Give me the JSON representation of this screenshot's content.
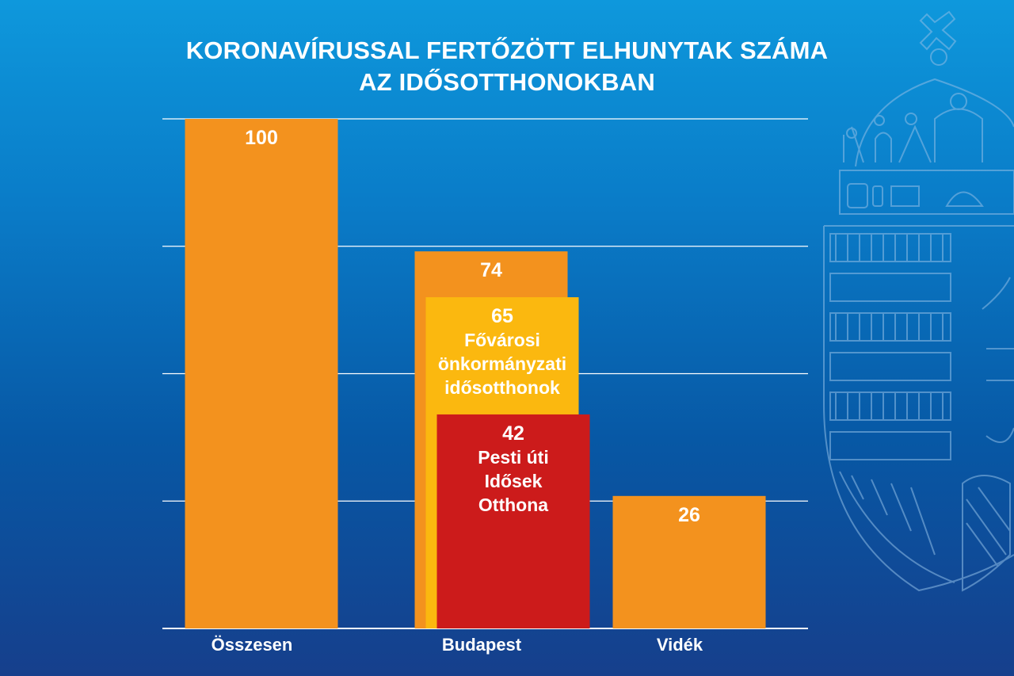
{
  "chart_data": {
    "type": "bar",
    "title_lines": [
      "KORONAVÍRUSSAL FERTŐZÖTT ELHUNYTAK SZÁMA",
      "AZ IDŐSOTTHONOKBAN"
    ],
    "categories": [
      "Összesen",
      "Budapest",
      "Vidék"
    ],
    "ylim": [
      0,
      100
    ],
    "grid": true,
    "bars": [
      {
        "category_index": 0,
        "value": 100,
        "label": [
          "100"
        ],
        "color": "#f3921e",
        "text_color": "#ffffff"
      },
      {
        "category_index": 1,
        "value": 74,
        "label": [
          "74"
        ],
        "color": "#f3921e",
        "text_color": "#ffffff"
      },
      {
        "category_index": 1,
        "value": 65,
        "label": [
          "65",
          "Fővárosi",
          "önkormányzati",
          "idősotthonok"
        ],
        "color": "#fbb80f",
        "text_color": "#ffffff"
      },
      {
        "category_index": 1,
        "value": 42,
        "label": [
          "42",
          "Pesti úti",
          "Idősek",
          "Otthona"
        ],
        "color": "#cc1b1b",
        "text_color": "#ffffff"
      },
      {
        "category_index": 2,
        "value": 26,
        "label": [
          "26"
        ],
        "color": "#f3921e",
        "text_color": "#ffffff"
      }
    ]
  },
  "colors": {
    "grid": "#ffffff",
    "text": "#ffffff",
    "emblem_line": "#8fbde6"
  },
  "decoration": {
    "emblem_icon": "hungarian-coat-of-arms-watermark"
  }
}
